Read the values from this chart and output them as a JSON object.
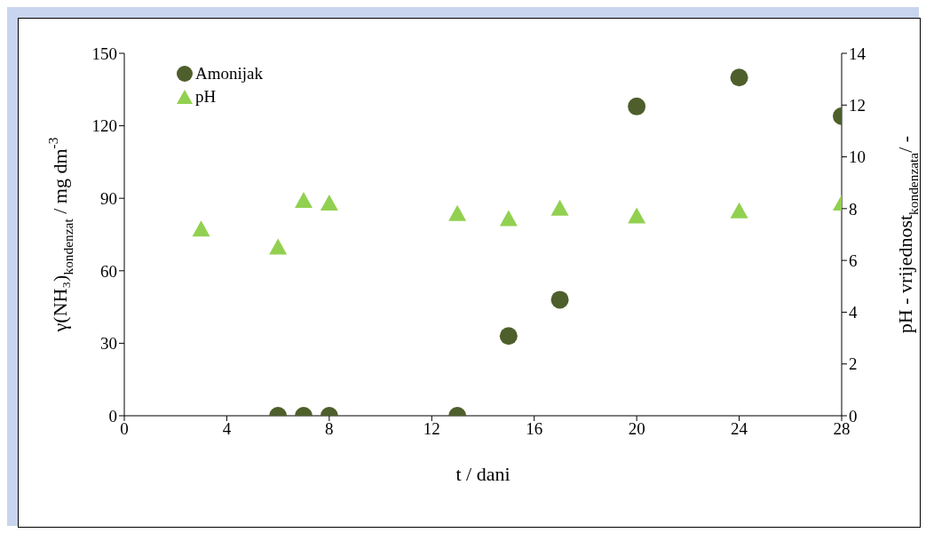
{
  "chart_data": {
    "type": "scatter",
    "xlabel": "t / dani",
    "ylabel": "γ(NH₃)$_{kondenzat}$ / mg dm$^{-3}$",
    "y2label": "pH - vrijednost$_{kondenzata}$/ -",
    "xlim": [
      0,
      28
    ],
    "xticks": [
      0,
      4,
      8,
      12,
      16,
      20,
      24,
      28
    ],
    "ylim": [
      0,
      150
    ],
    "yticks": [
      0,
      30,
      60,
      90,
      120,
      150
    ],
    "y2lim": [
      0,
      14
    ],
    "y2ticks": [
      0,
      2,
      4,
      6,
      8,
      10,
      12,
      14
    ],
    "grid": false,
    "legend": "top left",
    "series": [
      {
        "name": "Amonijak",
        "color": "#4e5f2c",
        "marker": "circle",
        "x": [
          6,
          7,
          8,
          13,
          15,
          17,
          20,
          24,
          28
        ],
        "values": [
          0,
          0,
          0,
          0,
          33,
          48,
          128,
          140,
          124
        ]
      },
      {
        "name": "pH",
        "color": "#92d050",
        "marker": "triangle",
        "axis": "y2",
        "x": [
          3,
          6,
          7,
          8,
          13,
          15,
          17,
          20,
          24,
          28
        ],
        "values": [
          7.2,
          6.5,
          8.3,
          8.2,
          7.8,
          7.6,
          8.0,
          7.7,
          7.9,
          8.2
        ]
      }
    ]
  }
}
